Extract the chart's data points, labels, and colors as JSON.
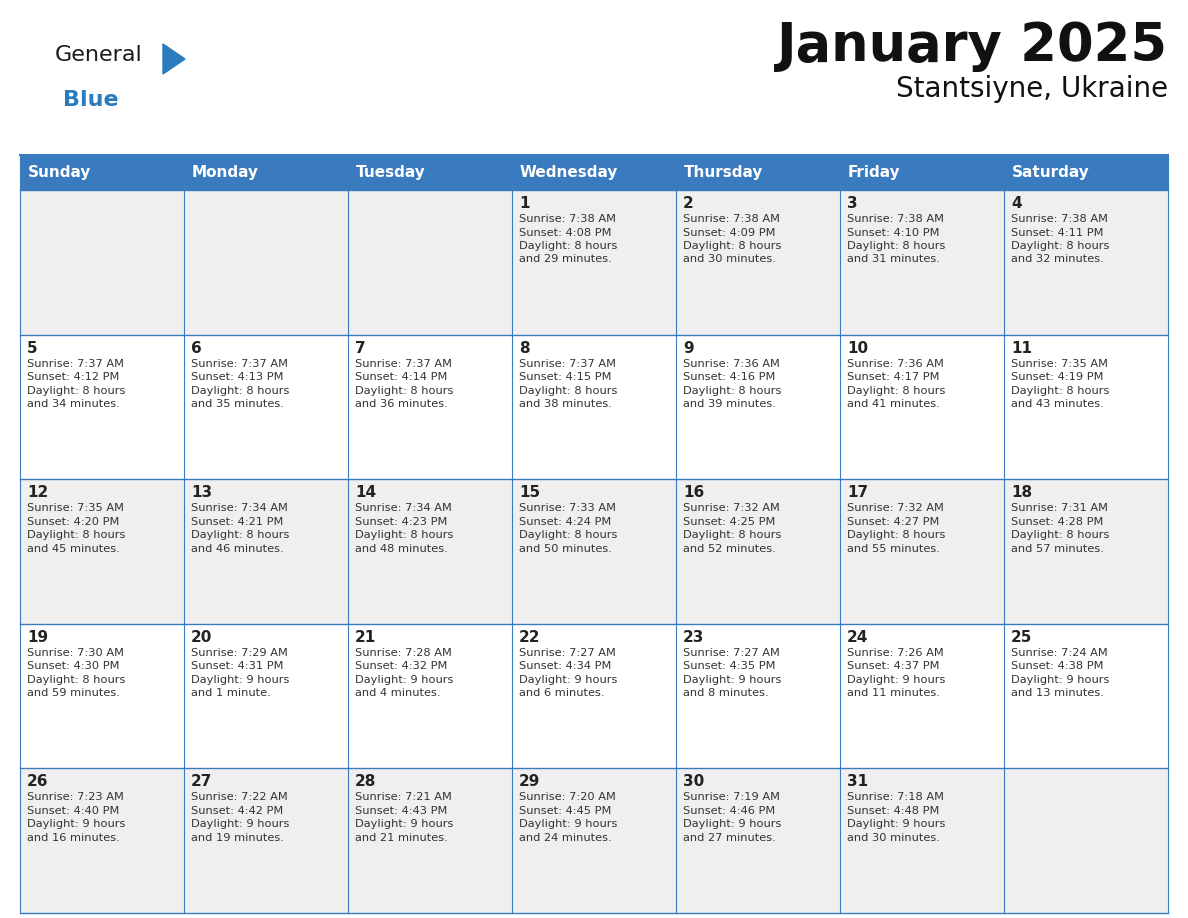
{
  "title": "January 2025",
  "subtitle": "Stantsiyne, Ukraine",
  "header_color": "#3a7abf",
  "header_text_color": "#ffffff",
  "cell_bg_even": "#efefef",
  "cell_bg_odd": "#ffffff",
  "line_color": "#3a7abf",
  "day_names": [
    "Sunday",
    "Monday",
    "Tuesday",
    "Wednesday",
    "Thursday",
    "Friday",
    "Saturday"
  ],
  "days": [
    {
      "day": 1,
      "col": 3,
      "row": 0,
      "sunrise": "7:38 AM",
      "sunset": "4:08 PM",
      "daylight_h": "8 hours",
      "daylight_m": "29 minutes"
    },
    {
      "day": 2,
      "col": 4,
      "row": 0,
      "sunrise": "7:38 AM",
      "sunset": "4:09 PM",
      "daylight_h": "8 hours",
      "daylight_m": "30 minutes"
    },
    {
      "day": 3,
      "col": 5,
      "row": 0,
      "sunrise": "7:38 AM",
      "sunset": "4:10 PM",
      "daylight_h": "8 hours",
      "daylight_m": "31 minutes"
    },
    {
      "day": 4,
      "col": 6,
      "row": 0,
      "sunrise": "7:38 AM",
      "sunset": "4:11 PM",
      "daylight_h": "8 hours",
      "daylight_m": "32 minutes"
    },
    {
      "day": 5,
      "col": 0,
      "row": 1,
      "sunrise": "7:37 AM",
      "sunset": "4:12 PM",
      "daylight_h": "8 hours",
      "daylight_m": "34 minutes"
    },
    {
      "day": 6,
      "col": 1,
      "row": 1,
      "sunrise": "7:37 AM",
      "sunset": "4:13 PM",
      "daylight_h": "8 hours",
      "daylight_m": "35 minutes"
    },
    {
      "day": 7,
      "col": 2,
      "row": 1,
      "sunrise": "7:37 AM",
      "sunset": "4:14 PM",
      "daylight_h": "8 hours",
      "daylight_m": "36 minutes"
    },
    {
      "day": 8,
      "col": 3,
      "row": 1,
      "sunrise": "7:37 AM",
      "sunset": "4:15 PM",
      "daylight_h": "8 hours",
      "daylight_m": "38 minutes"
    },
    {
      "day": 9,
      "col": 4,
      "row": 1,
      "sunrise": "7:36 AM",
      "sunset": "4:16 PM",
      "daylight_h": "8 hours",
      "daylight_m": "39 minutes"
    },
    {
      "day": 10,
      "col": 5,
      "row": 1,
      "sunrise": "7:36 AM",
      "sunset": "4:17 PM",
      "daylight_h": "8 hours",
      "daylight_m": "41 minutes"
    },
    {
      "day": 11,
      "col": 6,
      "row": 1,
      "sunrise": "7:35 AM",
      "sunset": "4:19 PM",
      "daylight_h": "8 hours",
      "daylight_m": "43 minutes"
    },
    {
      "day": 12,
      "col": 0,
      "row": 2,
      "sunrise": "7:35 AM",
      "sunset": "4:20 PM",
      "daylight_h": "8 hours",
      "daylight_m": "45 minutes"
    },
    {
      "day": 13,
      "col": 1,
      "row": 2,
      "sunrise": "7:34 AM",
      "sunset": "4:21 PM",
      "daylight_h": "8 hours",
      "daylight_m": "46 minutes"
    },
    {
      "day": 14,
      "col": 2,
      "row": 2,
      "sunrise": "7:34 AM",
      "sunset": "4:23 PM",
      "daylight_h": "8 hours",
      "daylight_m": "48 minutes"
    },
    {
      "day": 15,
      "col": 3,
      "row": 2,
      "sunrise": "7:33 AM",
      "sunset": "4:24 PM",
      "daylight_h": "8 hours",
      "daylight_m": "50 minutes"
    },
    {
      "day": 16,
      "col": 4,
      "row": 2,
      "sunrise": "7:32 AM",
      "sunset": "4:25 PM",
      "daylight_h": "8 hours",
      "daylight_m": "52 minutes"
    },
    {
      "day": 17,
      "col": 5,
      "row": 2,
      "sunrise": "7:32 AM",
      "sunset": "4:27 PM",
      "daylight_h": "8 hours",
      "daylight_m": "55 minutes"
    },
    {
      "day": 18,
      "col": 6,
      "row": 2,
      "sunrise": "7:31 AM",
      "sunset": "4:28 PM",
      "daylight_h": "8 hours",
      "daylight_m": "57 minutes"
    },
    {
      "day": 19,
      "col": 0,
      "row": 3,
      "sunrise": "7:30 AM",
      "sunset": "4:30 PM",
      "daylight_h": "8 hours",
      "daylight_m": "59 minutes"
    },
    {
      "day": 20,
      "col": 1,
      "row": 3,
      "sunrise": "7:29 AM",
      "sunset": "4:31 PM",
      "daylight_h": "9 hours",
      "daylight_m": "1 minute"
    },
    {
      "day": 21,
      "col": 2,
      "row": 3,
      "sunrise": "7:28 AM",
      "sunset": "4:32 PM",
      "daylight_h": "9 hours",
      "daylight_m": "4 minutes"
    },
    {
      "day": 22,
      "col": 3,
      "row": 3,
      "sunrise": "7:27 AM",
      "sunset": "4:34 PM",
      "daylight_h": "9 hours",
      "daylight_m": "6 minutes"
    },
    {
      "day": 23,
      "col": 4,
      "row": 3,
      "sunrise": "7:27 AM",
      "sunset": "4:35 PM",
      "daylight_h": "9 hours",
      "daylight_m": "8 minutes"
    },
    {
      "day": 24,
      "col": 5,
      "row": 3,
      "sunrise": "7:26 AM",
      "sunset": "4:37 PM",
      "daylight_h": "9 hours",
      "daylight_m": "11 minutes"
    },
    {
      "day": 25,
      "col": 6,
      "row": 3,
      "sunrise": "7:24 AM",
      "sunset": "4:38 PM",
      "daylight_h": "9 hours",
      "daylight_m": "13 minutes"
    },
    {
      "day": 26,
      "col": 0,
      "row": 4,
      "sunrise": "7:23 AM",
      "sunset": "4:40 PM",
      "daylight_h": "9 hours",
      "daylight_m": "16 minutes"
    },
    {
      "day": 27,
      "col": 1,
      "row": 4,
      "sunrise": "7:22 AM",
      "sunset": "4:42 PM",
      "daylight_h": "9 hours",
      "daylight_m": "19 minutes"
    },
    {
      "day": 28,
      "col": 2,
      "row": 4,
      "sunrise": "7:21 AM",
      "sunset": "4:43 PM",
      "daylight_h": "9 hours",
      "daylight_m": "21 minutes"
    },
    {
      "day": 29,
      "col": 3,
      "row": 4,
      "sunrise": "7:20 AM",
      "sunset": "4:45 PM",
      "daylight_h": "9 hours",
      "daylight_m": "24 minutes"
    },
    {
      "day": 30,
      "col": 4,
      "row": 4,
      "sunrise": "7:19 AM",
      "sunset": "4:46 PM",
      "daylight_h": "9 hours",
      "daylight_m": "27 minutes"
    },
    {
      "day": 31,
      "col": 5,
      "row": 4,
      "sunrise": "7:18 AM",
      "sunset": "4:48 PM",
      "daylight_h": "9 hours",
      "daylight_m": "30 minutes"
    }
  ],
  "num_rows": 5,
  "num_cols": 7,
  "logo_general_color": "#1a1a1a",
  "logo_blue_color": "#2b7bbf"
}
